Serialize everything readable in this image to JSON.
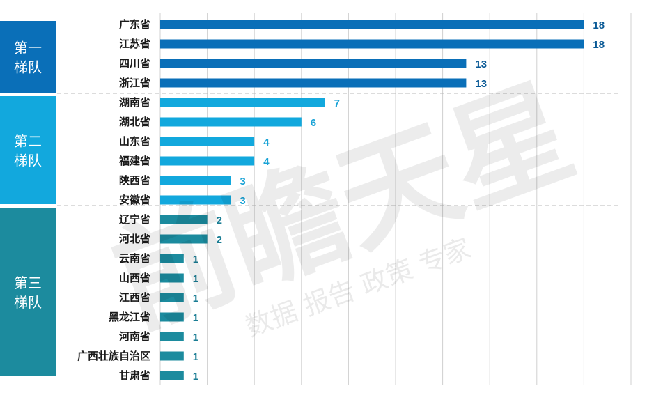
{
  "chart_data": {
    "type": "bar",
    "orientation": "horizontal",
    "categories": [
      "广东省",
      "江苏省",
      "四川省",
      "浙江省",
      "湖南省",
      "湖北省",
      "山东省",
      "福建省",
      "陕西省",
      "安徽省",
      "辽宁省",
      "河北省",
      "云南省",
      "山西省",
      "江西省",
      "黑龙江省",
      "河南省",
      "广西壮族自治区",
      "甘肃省"
    ],
    "values": [
      18,
      18,
      13,
      13,
      7,
      6,
      4,
      4,
      3,
      3,
      2,
      2,
      1,
      1,
      1,
      1,
      1,
      1,
      1
    ],
    "xlim": [
      0,
      20
    ],
    "grid": true,
    "tiers": [
      {
        "label_line1": "第一",
        "label_line2": "梯队",
        "start": 0,
        "end": 3,
        "color": "#0a6fb8",
        "value_color": "#0a5a96"
      },
      {
        "label_line1": "第二",
        "label_line2": "梯队",
        "start": 4,
        "end": 9,
        "color": "#12a8dd",
        "value_color": "#1aa3d6"
      },
      {
        "label_line1": "第三",
        "label_line2": "梯队",
        "start": 10,
        "end": 18,
        "color": "#1c8b9e",
        "value_color": "#1a7d94"
      }
    ]
  },
  "watermark": {
    "brand": "前瞻天星",
    "tagline": "数据 报告 政策 专家"
  }
}
